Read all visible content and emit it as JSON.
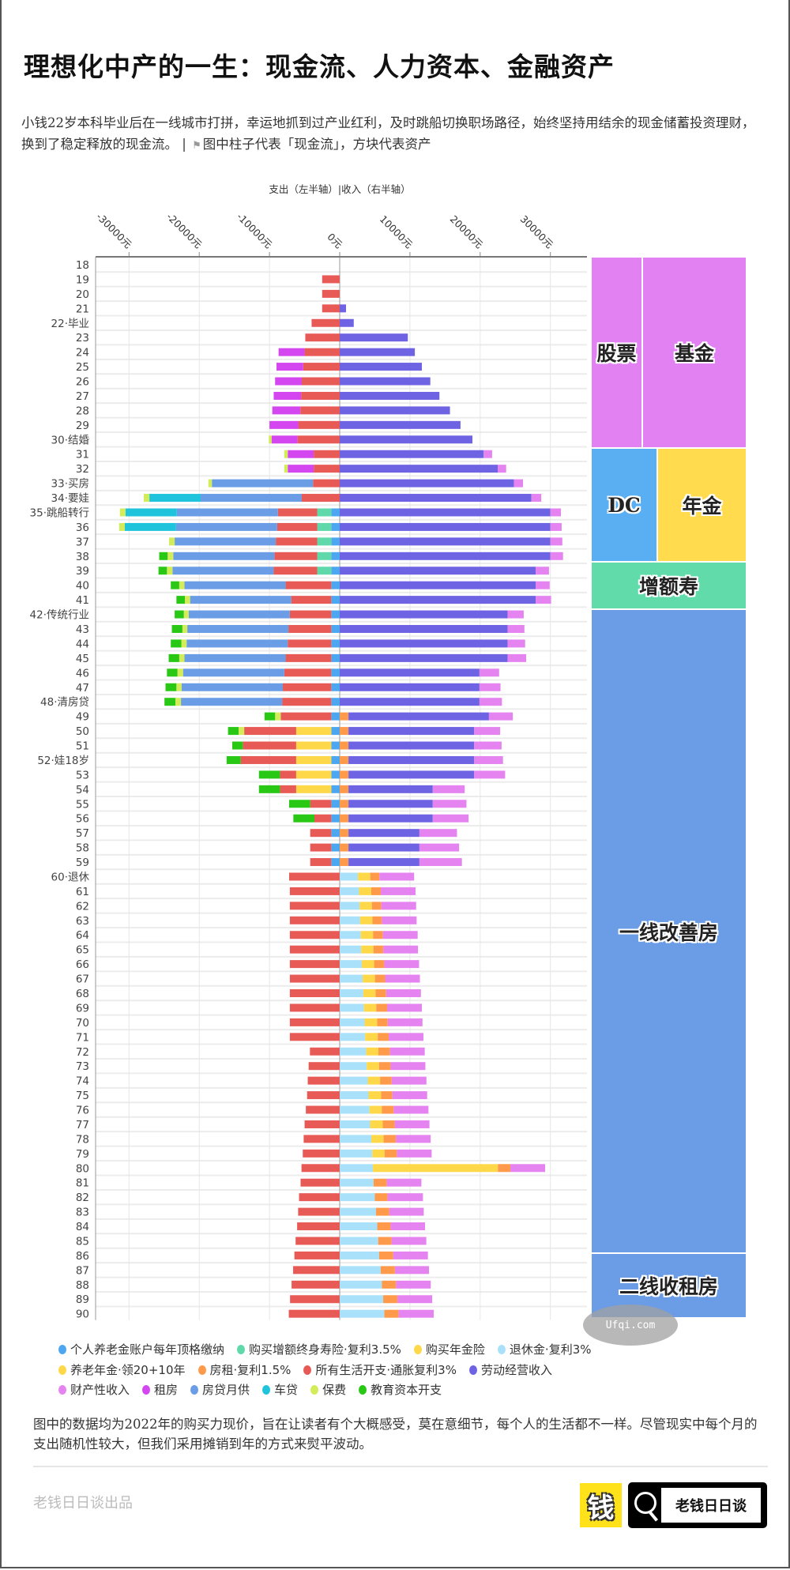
{
  "title": "理想化中产的一生：现金流、人力资本、金融资产",
  "subtitle": {
    "text": "小钱22岁本科毕业后在一线城市打拼，幸运地抓到过产业红利，及时跳船切换职场路径，始终坚持用结余的现金储蓄投资理财，换到了稳定释放的现金流。 | ",
    "flag_icon": "flag-icon",
    "note": "图中柱子代表「现金流」，方块代表资产"
  },
  "chart_data": {
    "type": "bar",
    "orientation": "horizontal",
    "stacked": true,
    "diverging": true,
    "header": "支出（左半轴）|收入（右半轴）",
    "xlim": [
      -35000,
      35000
    ],
    "x_ticks": [
      -30000,
      -20000,
      -10000,
      0,
      10000,
      20000,
      30000
    ],
    "x_tick_labels": [
      "-30000元",
      "-20000元",
      "-10000元",
      "0元",
      "10000元",
      "20000元",
      "30000元"
    ],
    "grid": true,
    "legend_position": "bottom",
    "categories": [
      "18",
      "19",
      "20",
      "21",
      "22·毕业",
      "23",
      "24",
      "25",
      "26",
      "27",
      "28",
      "29",
      "30·结婚",
      "31",
      "32",
      "33·买房",
      "34·要娃",
      "35·跳船转行",
      "36",
      "37",
      "38",
      "39",
      "40",
      "41",
      "42·传统行业",
      "43",
      "44",
      "45",
      "46",
      "47",
      "48·清房贷",
      "49",
      "50",
      "51",
      "52·娃18岁",
      "53",
      "54",
      "55",
      "56",
      "57",
      "58",
      "59",
      "60·退休",
      "61",
      "62",
      "63",
      "64",
      "65",
      "66",
      "67",
      "68",
      "69",
      "70",
      "71",
      "72",
      "73",
      "74",
      "75",
      "76",
      "77",
      "78",
      "79",
      "80",
      "81",
      "82",
      "83",
      "84",
      "85",
      "86",
      "87",
      "88",
      "89",
      "90"
    ],
    "series": [
      {
        "key": "pa",
        "name": "个人养老金账户每年顶格缴纳",
        "color": "#4da6f0",
        "side": "expense"
      },
      {
        "key": "zes",
        "name": "购买增额终身寿险·复利3.5%",
        "color": "#5fd9a9",
        "side": "expense"
      },
      {
        "key": "njx",
        "name": "购买年金险",
        "color": "#ffd84a",
        "side": "expense"
      },
      {
        "key": "tx",
        "name": "退休金·复利3%",
        "color": "#a9e1fa",
        "side": "income"
      },
      {
        "key": "ylnj",
        "name": "养老年金·领20+10年",
        "color": "#ffd84a",
        "side": "income"
      },
      {
        "key": "fz",
        "name": "房租·复利1.5%",
        "color": "#ff9a4a",
        "side": "income"
      },
      {
        "key": "sh",
        "name": "所有生活开支·通胀复利3%",
        "color": "#e85a55",
        "side": "expense"
      },
      {
        "key": "ld",
        "name": "劳动经营收入",
        "color": "#6e63e3",
        "side": "income"
      },
      {
        "key": "cc",
        "name": "财产性收入",
        "color": "#e584f0",
        "side": "income"
      },
      {
        "key": "zf",
        "name": "租房",
        "color": "#d446f0",
        "side": "expense"
      },
      {
        "key": "fd",
        "name": "房贷月供",
        "color": "#6b9de6",
        "side": "expense"
      },
      {
        "key": "cd",
        "name": "车贷",
        "color": "#1fc4dc",
        "side": "expense"
      },
      {
        "key": "bf",
        "name": "保费",
        "color": "#d2ec5a",
        "side": "expense"
      },
      {
        "key": "jy",
        "name": "教育资本开支",
        "color": "#28c814",
        "side": "expense"
      }
    ],
    "expense_stack_order": [
      "pa",
      "zes",
      "njx",
      "sh",
      "zf",
      "fd",
      "cd",
      "bf",
      "jy"
    ],
    "income_stack_order": [
      "tx",
      "ylnj",
      "fz",
      "ld",
      "cc"
    ],
    "rows": [
      {},
      {
        "sh": 2500
      },
      {
        "sh": 2500
      },
      {
        "sh": 2500,
        "ld": 900
      },
      {
        "sh": 4000,
        "ld": 2000
      },
      {
        "sh": 4900,
        "ld": 9700
      },
      {
        "sh": 5000,
        "zf": 3700,
        "ld": 10700
      },
      {
        "sh": 5200,
        "zf": 3800,
        "ld": 11700
      },
      {
        "sh": 5400,
        "zf": 3800,
        "ld": 12900
      },
      {
        "sh": 5500,
        "zf": 3900,
        "ld": 14200
      },
      {
        "sh": 5600,
        "zf": 4000,
        "ld": 15700
      },
      {
        "sh": 5900,
        "zf": 4100,
        "ld": 17200
      },
      {
        "sh": 6000,
        "zf": 3700,
        "bf": 400,
        "ld": 18900
      },
      {
        "sh": 3700,
        "zf": 3700,
        "bf": 500,
        "ld": 20500,
        "cc": 1200
      },
      {
        "sh": 3700,
        "zf": 3700,
        "bf": 500,
        "ld": 22500,
        "cc": 1200
      },
      {
        "sh": 3800,
        "fd": 14400,
        "bf": 500,
        "ld": 24800,
        "cc": 1300
      },
      {
        "sh": 5400,
        "fd": 14400,
        "cd": 7300,
        "bf": 800,
        "ld": 27300,
        "cc": 1400
      },
      {
        "pa": 1200,
        "zes": 2000,
        "sh": 5600,
        "fd": 14400,
        "cd": 7300,
        "bf": 800,
        "ld": 30000,
        "cc": 1500
      },
      {
        "pa": 1200,
        "zes": 2000,
        "sh": 5700,
        "fd": 14400,
        "cd": 7300,
        "bf": 800,
        "ld": 30000,
        "cc": 1600
      },
      {
        "pa": 1200,
        "zes": 2000,
        "sh": 5900,
        "fd": 14400,
        "bf": 800,
        "ld": 30000,
        "cc": 1700
      },
      {
        "pa": 1200,
        "zes": 2000,
        "sh": 6100,
        "fd": 14400,
        "bf": 800,
        "jy": 1200,
        "ld": 30000,
        "cc": 1800
      },
      {
        "pa": 1200,
        "zes": 2000,
        "sh": 6200,
        "fd": 14400,
        "bf": 800,
        "jy": 1200,
        "ld": 27900,
        "cc": 1900
      },
      {
        "pa": 1200,
        "sh": 6500,
        "fd": 14400,
        "bf": 750,
        "jy": 1200,
        "ld": 27900,
        "cc": 2000
      },
      {
        "pa": 1200,
        "sh": 5700,
        "fd": 14400,
        "bf": 750,
        "jy": 1200,
        "ld": 27900,
        "cc": 2200
      },
      {
        "pa": 1200,
        "sh": 5900,
        "fd": 14400,
        "bf": 700,
        "jy": 1300,
        "ld": 23900,
        "cc": 2300
      },
      {
        "pa": 1200,
        "sh": 6100,
        "fd": 14400,
        "bf": 700,
        "jy": 1500,
        "ld": 23900,
        "cc": 2400
      },
      {
        "pa": 1200,
        "sh": 6200,
        "fd": 14400,
        "bf": 750,
        "jy": 1500,
        "ld": 23900,
        "cc": 2500
      },
      {
        "pa": 1200,
        "sh": 6500,
        "fd": 14400,
        "bf": 750,
        "jy": 1500,
        "ld": 23900,
        "cc": 2650
      },
      {
        "pa": 1200,
        "sh": 6700,
        "fd": 14400,
        "bf": 800,
        "jy": 1500,
        "ld": 19900,
        "cc": 2800
      },
      {
        "pa": 1200,
        "sh": 6900,
        "fd": 14400,
        "bf": 750,
        "jy": 1550,
        "ld": 19900,
        "cc": 3000
      },
      {
        "pa": 1200,
        "sh": 7000,
        "fd": 14400,
        "bf": 800,
        "jy": 1550,
        "ld": 19900,
        "cc": 3200
      },
      {
        "pa": 1200,
        "sh": 7200,
        "bf": 800,
        "jy": 1500,
        "fz": 1250,
        "ld": 20000,
        "cc": 3400
      },
      {
        "pa": 1200,
        "njx": 5000,
        "sh": 7400,
        "bf": 800,
        "jy": 1500,
        "fz": 1250,
        "ld": 17900,
        "cc": 3700
      },
      {
        "pa": 1200,
        "njx": 5000,
        "sh": 7600,
        "jy": 1500,
        "fz": 1250,
        "ld": 17900,
        "cc": 3900
      },
      {
        "pa": 1200,
        "njx": 5000,
        "sh": 7900,
        "jy": 2000,
        "fz": 1250,
        "ld": 17900,
        "cc": 4100
      },
      {
        "pa": 1200,
        "njx": 5000,
        "sh": 2300,
        "jy": 3000,
        "fz": 1250,
        "ld": 17900,
        "cc": 4400
      },
      {
        "pa": 1200,
        "njx": 5000,
        "sh": 2300,
        "jy": 3000,
        "fz": 1250,
        "ld": 12000,
        "cc": 4550
      },
      {
        "pa": 1200,
        "sh": 3000,
        "jy": 3000,
        "fz": 1250,
        "ld": 12000,
        "cc": 4800
      },
      {
        "pa": 1200,
        "sh": 2400,
        "jy": 3000,
        "fz": 1250,
        "ld": 12000,
        "cc": 5100
      },
      {
        "pa": 1200,
        "sh": 3000,
        "fz": 1250,
        "ld": 10100,
        "cc": 5350
      },
      {
        "pa": 1200,
        "sh": 3000,
        "fz": 1250,
        "ld": 10100,
        "cc": 5650
      },
      {
        "pa": 1200,
        "sh": 3000,
        "fz": 1250,
        "ld": 10100,
        "cc": 6050
      },
      {
        "sh": 7200,
        "tx": 2600,
        "ylnj": 1750,
        "fz": 1300,
        "cc": 4950
      },
      {
        "sh": 7100,
        "tx": 2750,
        "ylnj": 1750,
        "fz": 1350,
        "cc": 4950
      },
      {
        "sh": 7100,
        "tx": 2830,
        "ylnj": 1750,
        "fz": 1350,
        "cc": 4950
      },
      {
        "sh": 7100,
        "tx": 2900,
        "ylnj": 1750,
        "fz": 1350,
        "cc": 4950
      },
      {
        "sh": 7100,
        "tx": 3000,
        "ylnj": 1750,
        "fz": 1400,
        "cc": 4950
      },
      {
        "sh": 7100,
        "tx": 3050,
        "ylnj": 1750,
        "fz": 1400,
        "cc": 4950
      },
      {
        "sh": 7100,
        "tx": 3150,
        "ylnj": 1750,
        "fz": 1450,
        "cc": 4950
      },
      {
        "sh": 7100,
        "tx": 3270,
        "ylnj": 1750,
        "fz": 1450,
        "cc": 4950
      },
      {
        "sh": 7100,
        "tx": 3360,
        "ylnj": 1750,
        "fz": 1500,
        "cc": 4950
      },
      {
        "sh": 7100,
        "tx": 3450,
        "ylnj": 1750,
        "fz": 1550,
        "cc": 4950
      },
      {
        "sh": 7100,
        "tx": 3540,
        "ylnj": 1800,
        "fz": 1500,
        "cc": 4950
      },
      {
        "sh": 7100,
        "tx": 3620,
        "ylnj": 1800,
        "fz": 1550,
        "cc": 4950
      },
      {
        "sh": 4240,
        "tx": 3760,
        "ylnj": 1750,
        "fz": 1650,
        "cc": 4950
      },
      {
        "sh": 4420,
        "tx": 3850,
        "ylnj": 1750,
        "fz": 1650,
        "cc": 4950
      },
      {
        "sh": 4550,
        "tx": 4000,
        "ylnj": 1750,
        "fz": 1650,
        "cc": 4950
      },
      {
        "sh": 4640,
        "tx": 4100,
        "ylnj": 1800,
        "fz": 1600,
        "cc": 4950
      },
      {
        "sh": 4820,
        "tx": 4240,
        "ylnj": 1750,
        "fz": 1700,
        "cc": 4950
      },
      {
        "sh": 5000,
        "tx": 4330,
        "ylnj": 1800,
        "fz": 1700,
        "cc": 4950
      },
      {
        "sh": 5130,
        "tx": 4500,
        "ylnj": 1750,
        "fz": 1750,
        "cc": 4950
      },
      {
        "sh": 5260,
        "tx": 4640,
        "ylnj": 1750,
        "fz": 1750,
        "cc": 4950
      },
      {
        "sh": 5440,
        "tx": 4730,
        "ylnj": 17800,
        "fz": 1770,
        "cc": 4950
      },
      {
        "sh": 5570,
        "tx": 4820,
        "fz": 1860,
        "cc": 4950
      },
      {
        "sh": 5790,
        "tx": 5000,
        "fz": 1800,
        "cc": 5050
      },
      {
        "sh": 5920,
        "tx": 5170,
        "fz": 1900,
        "cc": 4900
      },
      {
        "sh": 6060,
        "tx": 5350,
        "fz": 1900,
        "cc": 4900
      },
      {
        "sh": 6280,
        "tx": 5480,
        "fz": 1900,
        "cc": 4950
      },
      {
        "sh": 6450,
        "tx": 5610,
        "fz": 2000,
        "cc": 4950
      },
      {
        "sh": 6630,
        "tx": 5830,
        "fz": 2030,
        "cc": 4850
      },
      {
        "sh": 6850,
        "tx": 6010,
        "fz": 2000,
        "cc": 4950
      },
      {
        "sh": 7070,
        "tx": 6190,
        "fz": 2030,
        "cc": 4950
      },
      {
        "sh": 7250,
        "tx": 6360,
        "fz": 2030,
        "cc": 5000
      }
    ]
  },
  "treemap": {
    "cells": [
      {
        "label": "股票",
        "color": "#e281f1"
      },
      {
        "label": "基金",
        "color": "#e281f1"
      },
      {
        "label": "DC",
        "color": "#5aaef2"
      },
      {
        "label": "年金",
        "color": "#ffdb4d"
      },
      {
        "label": "增额寿",
        "color": "#62dbaa"
      },
      {
        "label": "一线改善房",
        "color": "#6b9de6"
      },
      {
        "label": "二线收租房",
        "color": "#6b9de6"
      }
    ]
  },
  "legend": [
    "个人养老金账户每年顶格缴纳",
    "购买增额终身寿险·复利3.5%",
    "购买年金险",
    "退休金·复利3%",
    "养老年金·领20+10年",
    "房租·复利1.5%",
    "所有生活开支·通胀复利3%",
    "劳动经营收入",
    "财产性收入",
    "租房",
    "房贷月供",
    "车贷",
    "保费",
    "教育资本开支"
  ],
  "footnote": "图中的数据均为2022年的购买力现价，旨在让读者有个大概感受，莫在意细节，每个人的生活都不一样。尽管现实中每个月的支出随机性较大，但我们采用摊销到年的方式来熨平波动。",
  "credit": "老钱日日谈出品",
  "logo": {
    "mark": "钱",
    "name": "老钱日日谈"
  },
  "watermark": "Ufqi.com"
}
